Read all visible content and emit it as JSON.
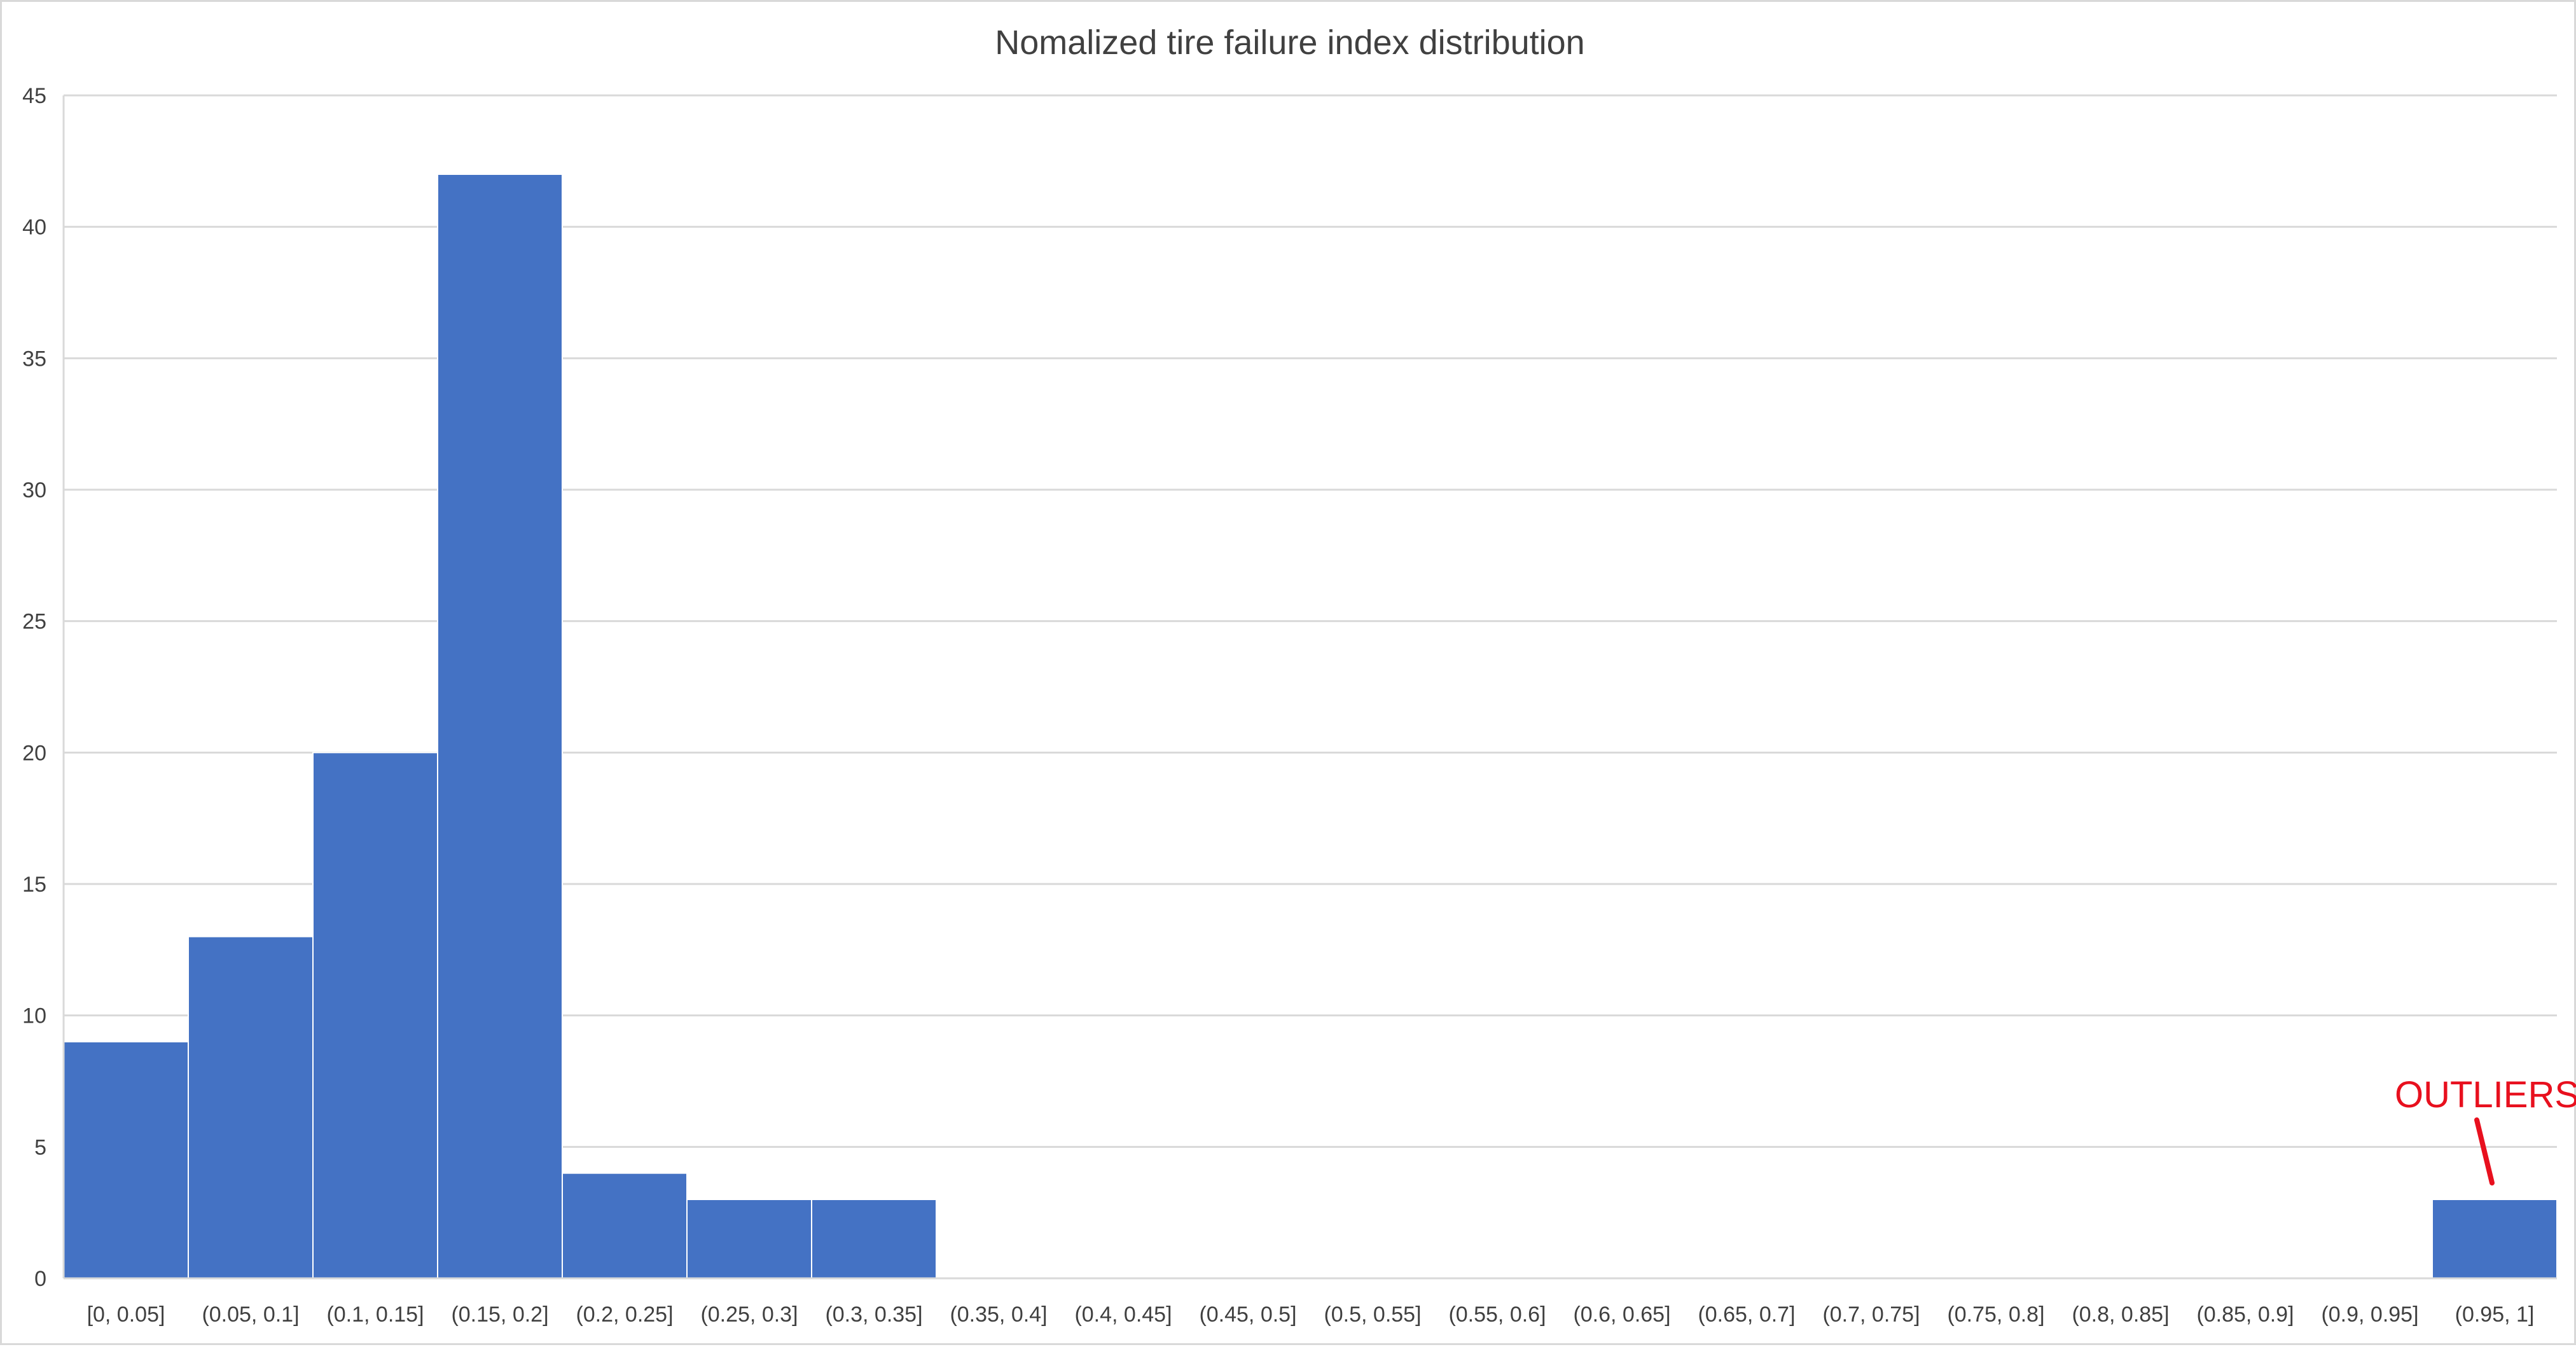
{
  "chart_data": {
    "type": "bar",
    "title": "Nomalized tire failure index distribution",
    "xlabel": "",
    "ylabel": "",
    "categories": [
      "[0, 0.05]",
      "(0.05, 0.1]",
      "(0.1, 0.15]",
      "(0.15, 0.2]",
      "(0.2, 0.25]",
      "(0.25, 0.3]",
      "(0.3, 0.35]",
      "(0.35, 0.4]",
      "(0.4, 0.45]",
      "(0.45, 0.5]",
      "(0.5, 0.55]",
      "(0.55, 0.6]",
      "(0.6, 0.65]",
      "(0.65, 0.7]",
      "(0.7, 0.75]",
      "(0.75, 0.8]",
      "(0.8, 0.85]",
      "(0.85, 0.9]",
      "(0.9, 0.95]",
      "(0.95, 1]"
    ],
    "values": [
      9,
      13,
      20,
      42,
      4,
      3,
      3,
      0,
      0,
      0,
      0,
      0,
      0,
      0,
      0,
      0,
      0,
      0,
      0,
      3
    ],
    "ylim": [
      0,
      45
    ],
    "yticks": [
      0,
      5,
      10,
      15,
      20,
      25,
      30,
      35,
      40,
      45
    ],
    "grid": true,
    "legend": "none",
    "bar_color": "#4472c4",
    "annotation": {
      "text": "OUTLIERS",
      "color": "#e8101e",
      "category": "(0.95, 1]"
    }
  }
}
